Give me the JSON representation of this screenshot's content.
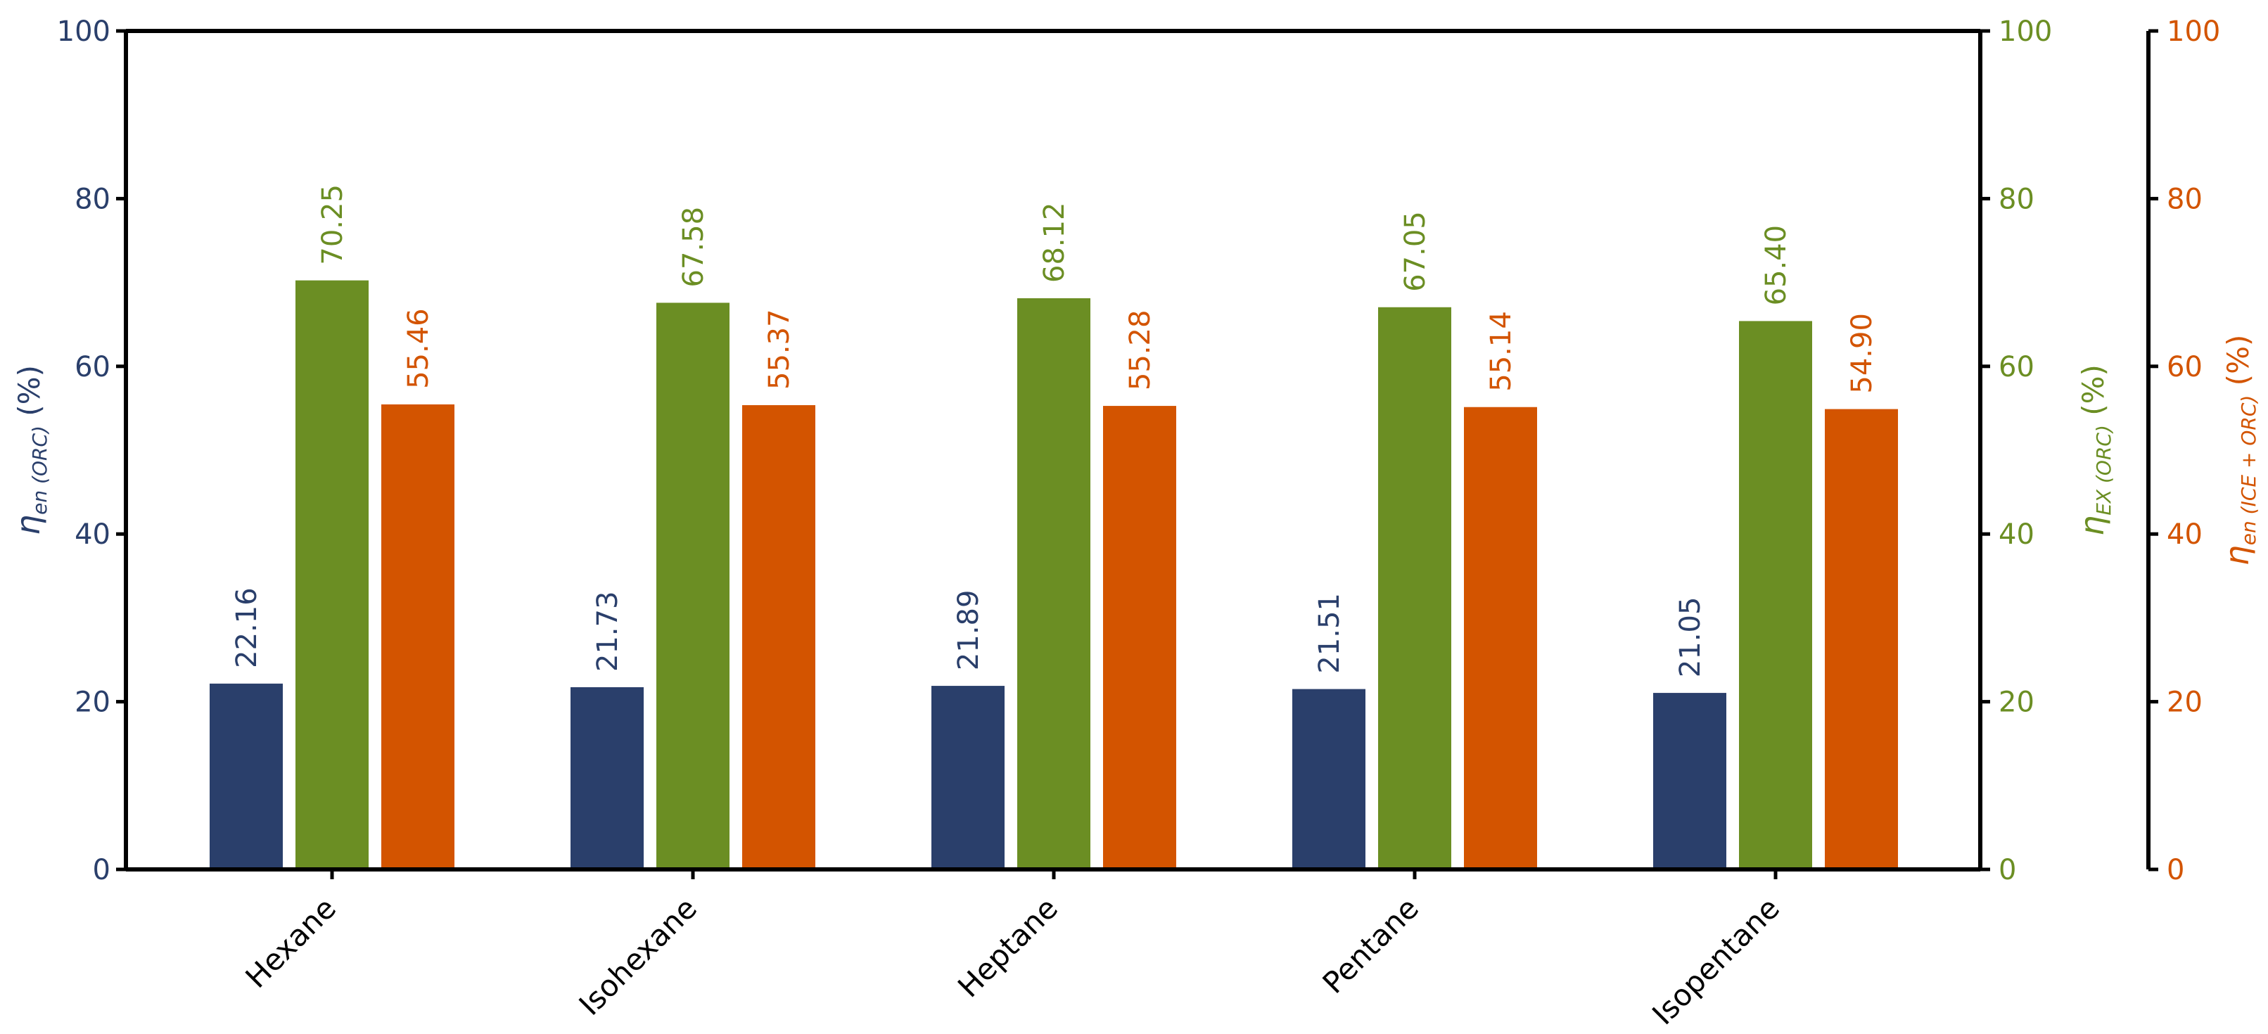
{
  "chart_data": {
    "type": "bar",
    "categories": [
      "Hexane",
      "Isohexane",
      "Heptane",
      "Pentane",
      "Isopentane"
    ],
    "series": [
      {
        "name": "ηen (ORC) (%)",
        "axis": "left",
        "color": "#2a3f6b",
        "values": [
          22.16,
          21.73,
          21.89,
          21.51,
          21.05
        ],
        "labels": [
          "22.16",
          "21.73",
          "21.89",
          "21.51",
          "21.05"
        ]
      },
      {
        "name": "ηEX (ORC) (%)",
        "axis": "right1",
        "color": "#6b8e23",
        "values": [
          70.25,
          67.58,
          68.12,
          67.05,
          65.4
        ],
        "labels": [
          "70.25",
          "67.58",
          "68.12",
          "67.05",
          "65.40"
        ]
      },
      {
        "name": "ηen (ICE + ORC) (%)",
        "axis": "right2",
        "color": "#d35400",
        "values": [
          55.46,
          55.37,
          55.28,
          55.14,
          54.9
        ],
        "labels": [
          "55.46",
          "55.37",
          "55.28",
          "55.14",
          "54.90"
        ]
      }
    ],
    "axes": {
      "left": {
        "ylim": [
          0,
          100
        ],
        "ticks": [
          "0",
          "20",
          "40",
          "60",
          "80",
          "100"
        ],
        "color": "#2a3f6b",
        "label": {
          "symbol": "η",
          "sub": "en (ORC)",
          "unit": " (%)"
        }
      },
      "right1": {
        "ylim": [
          0,
          100
        ],
        "ticks": [
          "0",
          "20",
          "40",
          "60",
          "80",
          "100"
        ],
        "color": "#6b8e23",
        "label": {
          "symbol": "η",
          "sub": "EX (ORC)",
          "unit": " (%)"
        }
      },
      "right2": {
        "ylim": [
          0,
          100
        ],
        "ticks": [
          "0",
          "20",
          "40",
          "60",
          "80",
          "100"
        ],
        "color": "#d35400",
        "label": {
          "symbol": "η",
          "sub": "en (ICE + ORC)",
          "unit": " (%)"
        }
      }
    },
    "grid": false,
    "legend": "none"
  }
}
